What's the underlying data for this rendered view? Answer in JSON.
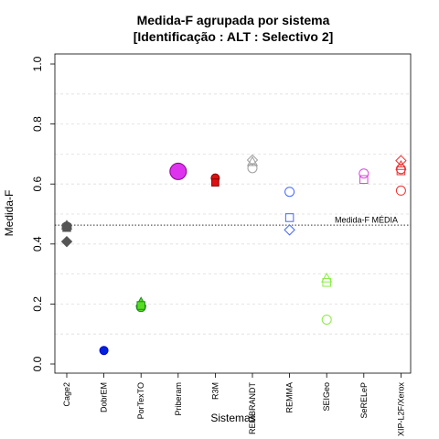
{
  "chart_data": {
    "type": "scatter",
    "title_line1": "Medida-F agrupada por sistema",
    "title_line2": "[Identificação : ALT : Selectivo 2]",
    "xlabel": "Sistemas",
    "ylabel": "Medida-F",
    "ylim": [
      0,
      1
    ],
    "yticks": [
      "0.0",
      "0.2",
      "0.4",
      "0.6",
      "0.8",
      "1.0"
    ],
    "ytick_values": [
      0.0,
      0.2,
      0.4,
      0.6,
      0.8,
      1.0
    ],
    "grid_values": [
      0.1,
      0.2,
      0.3,
      0.4,
      0.5,
      0.6,
      0.7,
      0.8,
      0.9
    ],
    "grid": true,
    "categories": [
      "Cage2",
      "DobrEM",
      "PorTexTO",
      "Priberam",
      "R3M",
      "REMBRANDT",
      "REMMA",
      "SEIGeo",
      "SeRELeP",
      "XIP-L2F/Xerox"
    ],
    "mean_line": {
      "value": 0.463,
      "label": "Medida-F MÉDIA"
    },
    "points": [
      {
        "category": "Cage2",
        "y": 0.458,
        "shape": "circle",
        "color": "#555555",
        "fill": "#555555",
        "size": 5
      },
      {
        "category": "Cage2",
        "y": 0.461,
        "shape": "triangle",
        "color": "#555555",
        "fill": "#555555",
        "size": 5
      },
      {
        "category": "Cage2",
        "y": 0.455,
        "shape": "square",
        "color": "#555555",
        "fill": "#555555",
        "size": 5
      },
      {
        "category": "Cage2",
        "y": 0.408,
        "shape": "diamond",
        "color": "#555555",
        "fill": "#555555",
        "size": 5
      },
      {
        "category": "DobrEM",
        "y": 0.045,
        "shape": "circle",
        "color": "#0000cc",
        "fill": "#0022dd",
        "size": 4.5
      },
      {
        "category": "PorTexTO",
        "y": 0.19,
        "shape": "circle",
        "color": "#228b22",
        "fill": "#55dd22",
        "size": 5
      },
      {
        "category": "PorTexTO",
        "y": 0.205,
        "shape": "triangle",
        "color": "#228b22",
        "fill": "#55dd22",
        "size": 5
      },
      {
        "category": "PorTexTO",
        "y": 0.195,
        "shape": "square",
        "color": "#228b22",
        "fill": "#55dd22",
        "size": 5
      },
      {
        "category": "Priberam",
        "y": 0.642,
        "shape": "circle",
        "color": "#8b008b",
        "fill": "#dd33ee",
        "size": 9
      },
      {
        "category": "R3M",
        "y": 0.62,
        "shape": "circle",
        "color": "#8b0000",
        "fill": "#dd1111",
        "size": 4.5
      },
      {
        "category": "R3M",
        "y": 0.605,
        "shape": "square",
        "color": "#8b0000",
        "fill": "#dd1111",
        "size": 4.5
      },
      {
        "category": "REMBRANDT",
        "y": 0.68,
        "shape": "diamond",
        "color": "#a0a0a0",
        "fill": "none",
        "size": 5
      },
      {
        "category": "REMBRANDT",
        "y": 0.673,
        "shape": "triangle",
        "color": "#a0a0a0",
        "fill": "none",
        "size": 5
      },
      {
        "category": "REMBRANDT",
        "y": 0.653,
        "shape": "circle",
        "color": "#a0a0a0",
        "fill": "none",
        "size": 5
      },
      {
        "category": "REMMA",
        "y": 0.574,
        "shape": "circle",
        "color": "#4466ff",
        "fill": "none",
        "size": 5
      },
      {
        "category": "REMMA",
        "y": 0.488,
        "shape": "square",
        "color": "#4466ff",
        "fill": "none",
        "size": 5
      },
      {
        "category": "REMMA",
        "y": 0.447,
        "shape": "diamond",
        "color": "#4466ff",
        "fill": "none",
        "size": 5
      },
      {
        "category": "SEIGeo",
        "y": 0.285,
        "shape": "triangle",
        "color": "#88ee44",
        "fill": "none",
        "size": 5
      },
      {
        "category": "SEIGeo",
        "y": 0.272,
        "shape": "square",
        "color": "#88ee44",
        "fill": "none",
        "size": 5
      },
      {
        "category": "SEIGeo",
        "y": 0.148,
        "shape": "circle",
        "color": "#88ee44",
        "fill": "none",
        "size": 5
      },
      {
        "category": "SeRELeP",
        "y": 0.635,
        "shape": "circle",
        "color": "#dd44dd",
        "fill": "none",
        "size": 5
      },
      {
        "category": "SeRELeP",
        "y": 0.615,
        "shape": "square",
        "color": "#dd44dd",
        "fill": "none",
        "size": 5
      },
      {
        "category": "XIP-L2F/Xerox",
        "y": 0.678,
        "shape": "diamond",
        "color": "#ee3333",
        "fill": "none",
        "size": 5
      },
      {
        "category": "XIP-L2F/Xerox",
        "y": 0.66,
        "shape": "triangle",
        "color": "#ee3333",
        "fill": "none",
        "size": 5
      },
      {
        "category": "XIP-L2F/Xerox",
        "y": 0.65,
        "shape": "circle",
        "color": "#ee3333",
        "fill": "none",
        "size": 5
      },
      {
        "category": "XIP-L2F/Xerox",
        "y": 0.644,
        "shape": "square",
        "color": "#ee3333",
        "fill": "none",
        "size": 5
      },
      {
        "category": "XIP-L2F/Xerox",
        "y": 0.578,
        "shape": "circle",
        "color": "#ee3333",
        "fill": "none",
        "size": 5
      }
    ]
  }
}
